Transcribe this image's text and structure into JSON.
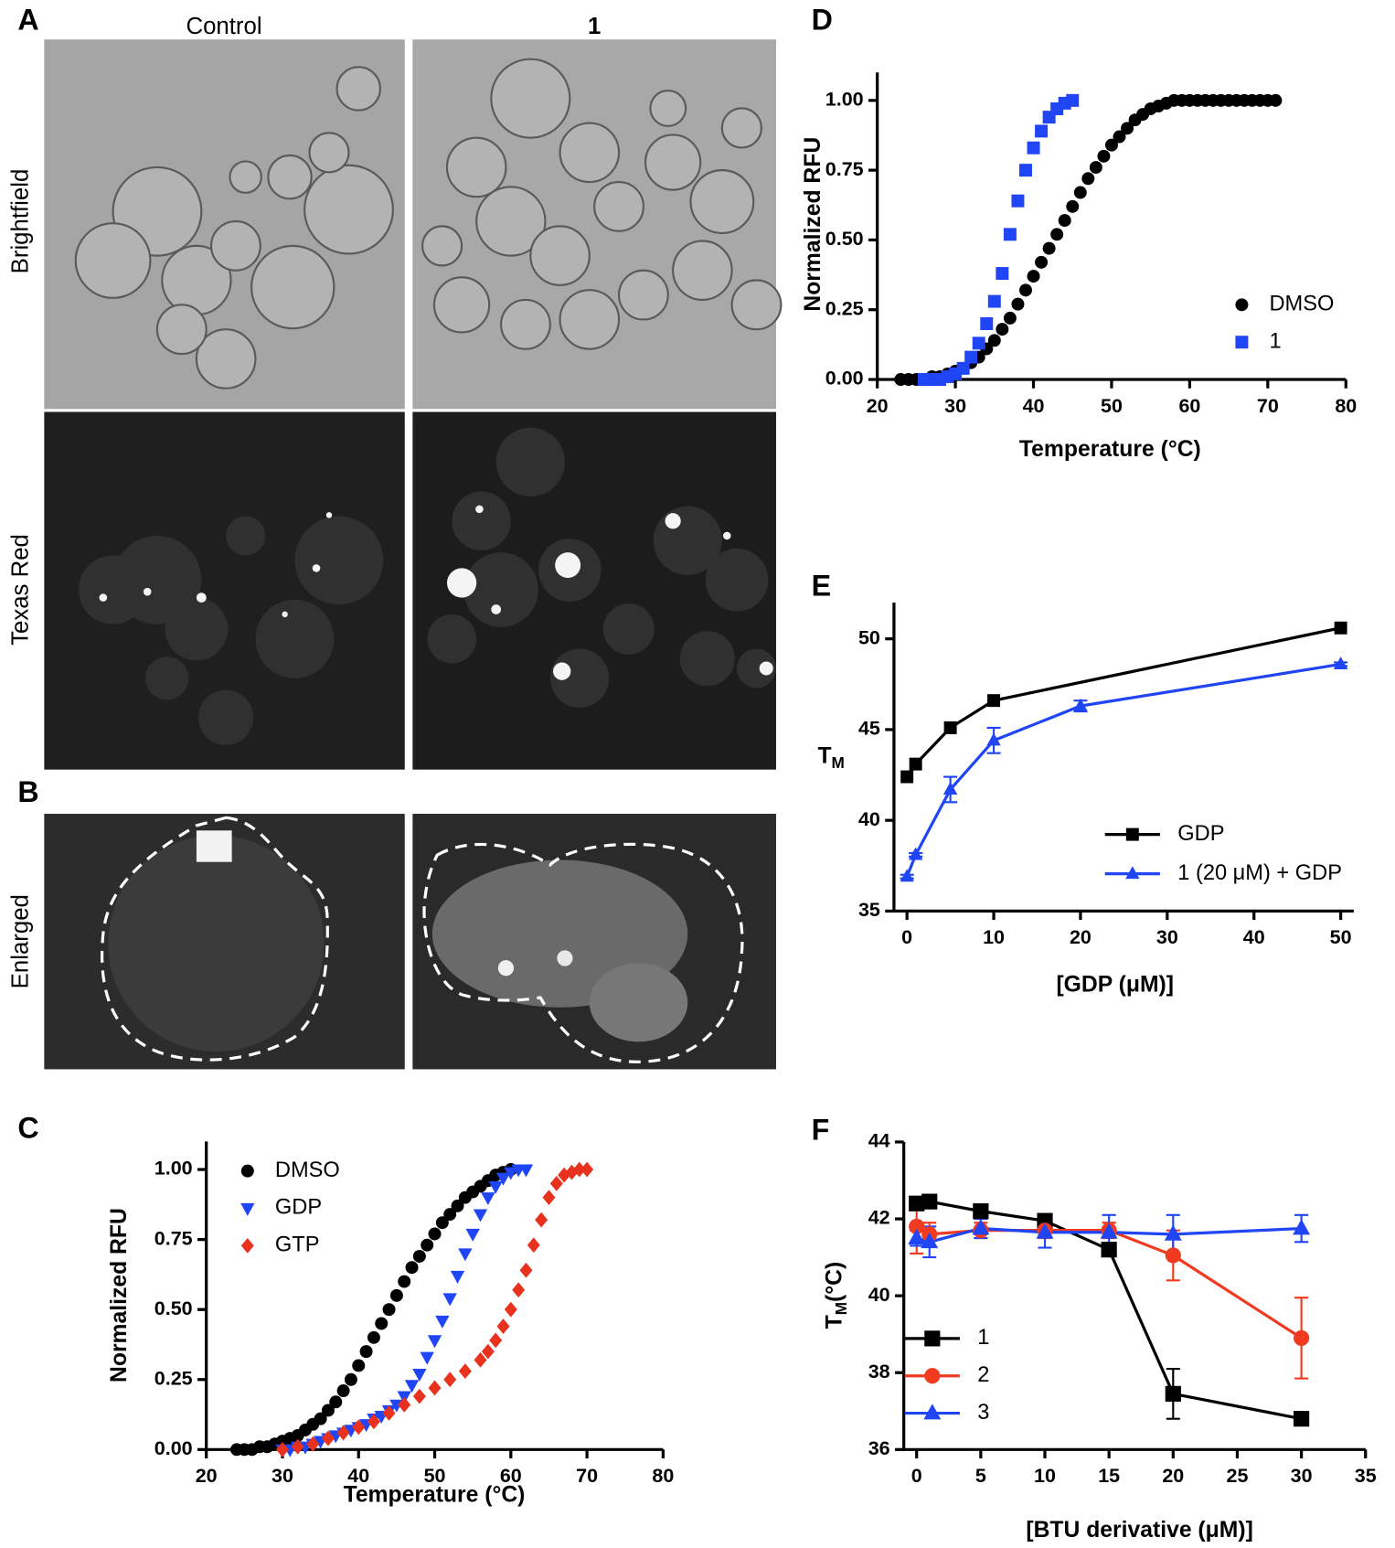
{
  "figure": {
    "a": {
      "letter": "A",
      "columns": [
        "Control",
        "1"
      ],
      "rows": [
        "Brightfield",
        "Texas Red"
      ]
    },
    "b": {
      "letter": "B",
      "rows": [
        "Enlarged"
      ]
    }
  },
  "chart_data": [
    {
      "type": "scatter",
      "panel": "C",
      "x_label": "Temperature (°C)",
      "y_label": "Normalized RFU",
      "xlim": [
        20,
        80
      ],
      "xticks": [
        20,
        30,
        40,
        50,
        60,
        70,
        80
      ],
      "ylim": [
        0,
        1.1
      ],
      "yticks": [
        {
          "value": 0,
          "label": "0.00"
        },
        {
          "value": 0.25,
          "label": "0.25"
        },
        {
          "value": 0.5,
          "label": "0.50"
        },
        {
          "value": 0.75,
          "label": "0.75"
        },
        {
          "value": 1,
          "label": "1.00"
        }
      ],
      "legend": "upper left",
      "series": [
        {
          "name": "DMSO",
          "color": "#000000",
          "marker": "circle",
          "x": [
            24,
            25,
            26,
            27,
            28,
            29,
            30,
            31,
            32,
            33,
            34,
            35,
            36,
            37,
            38,
            39,
            40,
            41,
            42,
            43,
            44,
            45,
            46,
            47,
            48,
            49,
            50,
            51,
            52,
            53,
            54,
            55,
            56,
            57,
            58,
            59,
            60
          ],
          "values": [
            0,
            0,
            0,
            0.01,
            0.01,
            0.02,
            0.03,
            0.04,
            0.05,
            0.07,
            0.09,
            0.11,
            0.14,
            0.17,
            0.21,
            0.25,
            0.3,
            0.35,
            0.4,
            0.45,
            0.5,
            0.55,
            0.6,
            0.65,
            0.69,
            0.73,
            0.77,
            0.81,
            0.84,
            0.87,
            0.9,
            0.92,
            0.94,
            0.96,
            0.98,
            0.99,
            1
          ]
        },
        {
          "name": "GDP",
          "color": "#1f45f5",
          "marker": "triangle-down",
          "x": [
            30,
            31,
            32,
            33,
            34,
            35,
            36,
            37,
            38,
            39,
            40,
            41,
            42,
            43,
            44,
            45,
            46,
            47,
            48,
            49,
            50,
            51,
            52,
            53,
            54,
            55,
            56,
            57,
            58,
            59,
            60,
            61,
            62
          ],
          "values": [
            0,
            0,
            0.01,
            0.01,
            0.02,
            0.03,
            0.04,
            0.05,
            0.06,
            0.07,
            0.08,
            0.09,
            0.11,
            0.12,
            0.14,
            0.16,
            0.19,
            0.23,
            0.27,
            0.33,
            0.39,
            0.46,
            0.54,
            0.62,
            0.7,
            0.77,
            0.84,
            0.9,
            0.94,
            0.97,
            0.99,
            1,
            1
          ]
        },
        {
          "name": "GTP",
          "color": "#e8321e",
          "marker": "diamond",
          "x": [
            30,
            32,
            34,
            36,
            38,
            40,
            42,
            44,
            46,
            48,
            50,
            52,
            54,
            56,
            57,
            58,
            59,
            60,
            61,
            62,
            63,
            64,
            65,
            66,
            67,
            68,
            69,
            70
          ],
          "values": [
            0,
            0.01,
            0.02,
            0.04,
            0.06,
            0.08,
            0.1,
            0.13,
            0.16,
            0.19,
            0.22,
            0.25,
            0.28,
            0.32,
            0.35,
            0.39,
            0.44,
            0.5,
            0.57,
            0.64,
            0.73,
            0.82,
            0.9,
            0.95,
            0.98,
            0.99,
            1,
            1
          ]
        }
      ]
    },
    {
      "type": "scatter",
      "panel": "D",
      "x_label": "Temperature (°C)",
      "y_label": "Normalized RFU",
      "xlim": [
        20,
        80
      ],
      "xticks": [
        20,
        30,
        40,
        50,
        60,
        70,
        80
      ],
      "ylim": [
        0,
        1.1
      ],
      "yticks": [
        {
          "value": 0,
          "label": "0.00"
        },
        {
          "value": 0.25,
          "label": "0.25"
        },
        {
          "value": 0.5,
          "label": "0.50"
        },
        {
          "value": 0.75,
          "label": "0.75"
        },
        {
          "value": 1,
          "label": "1.00"
        }
      ],
      "legend": "lower right",
      "series": [
        {
          "name": "DMSO",
          "color": "#000000",
          "marker": "circle",
          "x": [
            23,
            24,
            25,
            26,
            27,
            28,
            29,
            30,
            31,
            32,
            33,
            34,
            35,
            36,
            37,
            38,
            39,
            40,
            41,
            42,
            43,
            44,
            45,
            46,
            47,
            48,
            49,
            50,
            51,
            52,
            53,
            54,
            55,
            56,
            57,
            58,
            59,
            60,
            61,
            62,
            63,
            64,
            65,
            66,
            67,
            68,
            69,
            70,
            71
          ],
          "values": [
            0,
            0,
            0,
            0,
            0.01,
            0.01,
            0.02,
            0.03,
            0.04,
            0.06,
            0.08,
            0.11,
            0.14,
            0.18,
            0.22,
            0.27,
            0.32,
            0.37,
            0.42,
            0.47,
            0.52,
            0.57,
            0.62,
            0.67,
            0.72,
            0.76,
            0.8,
            0.84,
            0.87,
            0.9,
            0.93,
            0.95,
            0.97,
            0.98,
            0.99,
            1,
            1,
            1,
            1,
            1,
            1,
            1,
            1,
            1,
            1,
            1,
            1,
            1,
            1
          ]
        },
        {
          "name": "1",
          "color": "#1f45f5",
          "marker": "square",
          "x": [
            26,
            27,
            28,
            29,
            30,
            31,
            32,
            33,
            34,
            35,
            36,
            37,
            38,
            39,
            40,
            41,
            42,
            43,
            44,
            45
          ],
          "values": [
            0,
            0,
            0,
            0.01,
            0.02,
            0.04,
            0.08,
            0.13,
            0.2,
            0.28,
            0.38,
            0.52,
            0.64,
            0.75,
            0.83,
            0.89,
            0.94,
            0.97,
            0.99,
            1
          ]
        }
      ]
    },
    {
      "type": "line",
      "panel": "E",
      "x_label": "[GDP (μM)]",
      "y_label": "T",
      "y_label_sub": "M",
      "xlim": [
        -1.5,
        51.5
      ],
      "xticks": [
        0,
        10,
        20,
        30,
        40,
        50
      ],
      "ylim": [
        35,
        52
      ],
      "yticks": [
        35,
        40,
        45,
        50
      ],
      "legend": "lower right",
      "series": [
        {
          "name": "GDP",
          "color": "#000000",
          "marker": "square",
          "x": [
            0,
            1,
            5,
            10,
            50
          ],
          "values": [
            42.4,
            43.1,
            45.1,
            46.6,
            50.6
          ]
        },
        {
          "name": "1 (20 μM) + GDP",
          "color": "#1f45f5",
          "marker": "triangle",
          "x": [
            0,
            1,
            5,
            10,
            20,
            50
          ],
          "values": [
            36.9,
            38.1,
            41.7,
            44.4,
            46.3,
            48.6
          ],
          "errors": [
            0.1,
            0.1,
            0.7,
            0.7,
            0.3,
            0.1
          ]
        }
      ]
    },
    {
      "type": "line",
      "panel": "F",
      "x_label": "[BTU derivative (μM)]",
      "y_label": "T",
      "y_label_sub": "M",
      "y_label_unit": "(°C)",
      "xlim": [
        -1,
        35
      ],
      "xticks": [
        0,
        5,
        10,
        15,
        20,
        25,
        30,
        35
      ],
      "ylim": [
        36,
        44
      ],
      "yticks": [
        36,
        38,
        40,
        42,
        44
      ],
      "legend": "lower left",
      "series": [
        {
          "name": "1",
          "color": "#000000",
          "marker": "square",
          "x": [
            0,
            1,
            5,
            10,
            15,
            20,
            30
          ],
          "values": [
            42.4,
            42.45,
            42.2,
            41.95,
            41.2,
            37.45,
            36.8
          ],
          "errors": [
            0.1,
            0.1,
            0.1,
            0.1,
            0.1,
            0.65,
            0.15
          ]
        },
        {
          "name": "2",
          "color": "#f03b20",
          "marker": "circle",
          "x": [
            0,
            1,
            5,
            10,
            15,
            20,
            30
          ],
          "values": [
            41.8,
            41.6,
            41.7,
            41.7,
            41.7,
            41.05,
            38.9
          ],
          "errors": [
            0.7,
            0.3,
            0.2,
            0.2,
            0.2,
            0.65,
            1.05
          ]
        },
        {
          "name": "3",
          "color": "#1f45f5",
          "marker": "triangle",
          "x": [
            0,
            1,
            5,
            10,
            15,
            20,
            30
          ],
          "values": [
            41.5,
            41.4,
            41.75,
            41.65,
            41.65,
            41.6,
            41.75
          ],
          "errors": [
            0.2,
            0.4,
            0.25,
            0.4,
            0.45,
            0.5,
            0.35
          ]
        }
      ]
    }
  ]
}
